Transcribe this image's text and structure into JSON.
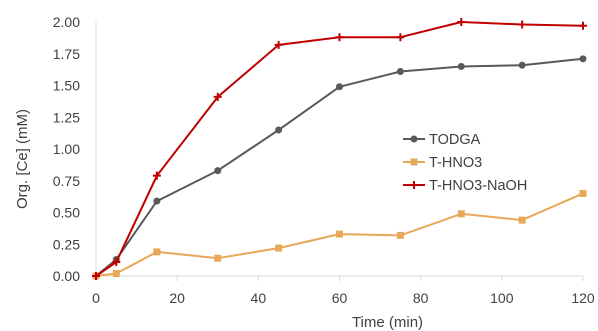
{
  "chart_data": {
    "type": "line",
    "xlabel": "Time (min)",
    "ylabel": "Org. [Ce] (mM)",
    "xlim": [
      0,
      120
    ],
    "ylim": [
      0,
      2.0
    ],
    "xticks": [
      "0",
      "20",
      "40",
      "60",
      "80",
      "100",
      "120"
    ],
    "yticks": [
      "0.00",
      "0.25",
      "0.50",
      "0.75",
      "1.00",
      "1.25",
      "1.50",
      "1.75",
      "2.00"
    ],
    "grid": false,
    "legend_position": "right",
    "series": [
      {
        "name": "TODGA",
        "color": "#595959",
        "marker": "circle",
        "x": [
          0,
          5,
          15,
          30,
          45,
          60,
          75,
          90,
          105,
          120
        ],
        "y": [
          0.0,
          0.13,
          0.59,
          0.83,
          1.15,
          1.49,
          1.61,
          1.65,
          1.66,
          1.71
        ]
      },
      {
        "name": "T-HNO3",
        "color": "#e8a85a",
        "marker": "square",
        "x": [
          0,
          5,
          15,
          30,
          45,
          60,
          75,
          90,
          105,
          120
        ],
        "y": [
          0.0,
          0.02,
          0.19,
          0.14,
          0.22,
          0.33,
          0.32,
          0.49,
          0.44,
          0.65
        ]
      },
      {
        "name": "T-HNO3-NaOH",
        "color": "#c00000",
        "marker": "plus",
        "x": [
          0,
          5,
          15,
          30,
          45,
          60,
          75,
          90,
          105,
          120
        ],
        "y": [
          0.0,
          0.11,
          0.79,
          1.41,
          1.82,
          1.88,
          1.88,
          2.0,
          1.98,
          1.97
        ]
      }
    ]
  }
}
